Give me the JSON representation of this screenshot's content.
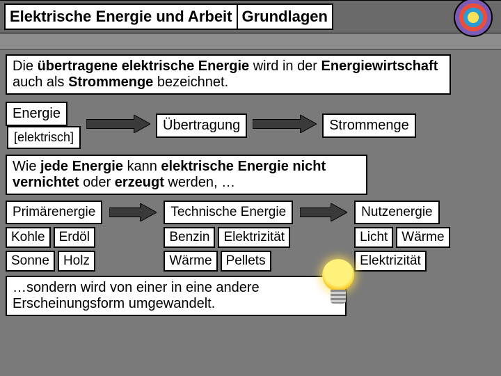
{
  "header": {
    "title": "Elektrische Energie und Arbeit",
    "subtitle": "Grundlagen"
  },
  "intro": {
    "line": "Die <b>übertragene elektrische Energie</b> wird in der <b>Energiewirtschaft</b> auch als <b>Strommenge</b> bezeichnet."
  },
  "flow1": {
    "left": "Energie",
    "left_sub": "[elektrisch]",
    "mid": "Übertragung",
    "right": "Strommenge"
  },
  "midtext": "Wie <b>jede Energie</b> kann <b>elektrische Energie nicht vernichtet</b> oder <b>erzeugt</b> werden, …",
  "flow2": {
    "col1": {
      "title": "Primärenergie",
      "tags": [
        "Kohle",
        "Erdöl",
        "Sonne",
        "Holz"
      ]
    },
    "col2": {
      "title": "Technische Energie",
      "tags": [
        "Benzin",
        "Elektrizität",
        "Wärme",
        "Pellets"
      ]
    },
    "col3": {
      "title": "Nutzenergie",
      "tags": [
        "Licht",
        "Wärme",
        "Elektrizität"
      ]
    }
  },
  "footer": "…sondern wird von einer in eine andere Erscheinungsform umgewandelt.",
  "style": {
    "arrow_fill": "#3a3a3a",
    "arrow_w_long": 92,
    "arrow_w_short": 68,
    "arrow_h": 26
  }
}
